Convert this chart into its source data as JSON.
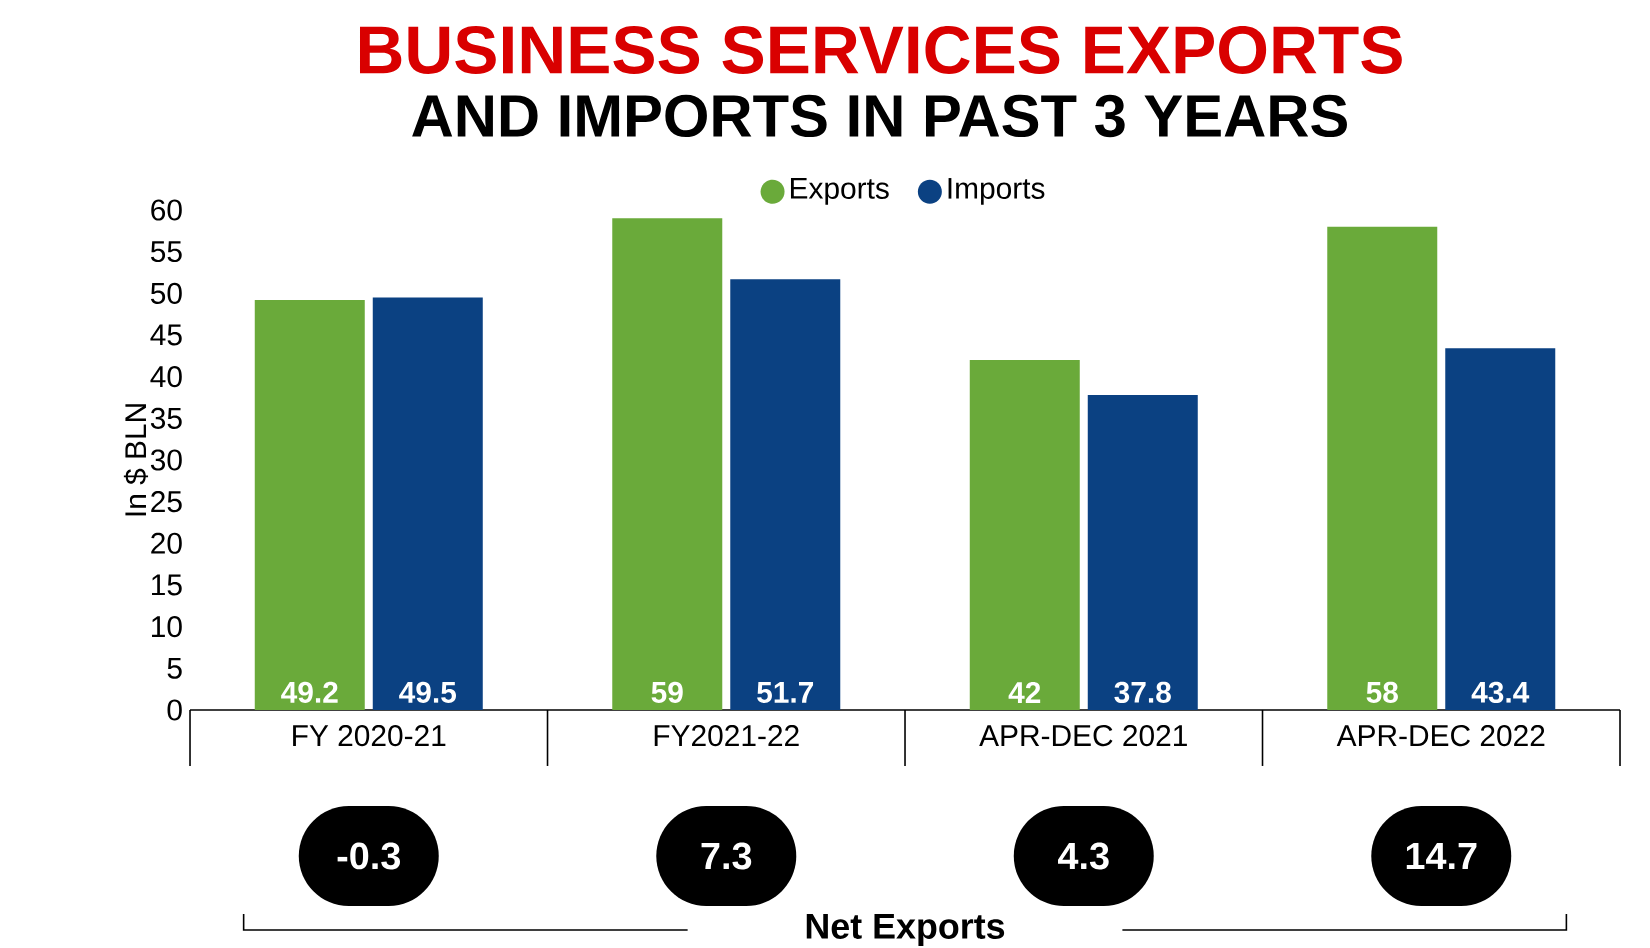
{
  "chart_data": {
    "type": "bar",
    "title": "BUSINESS SERVICES EXPORTS",
    "subtitle": "AND IMPORTS IN PAST 3 YEARS",
    "ylabel": "In $ BLN",
    "categories": [
      "FY 2020-21",
      "FY2021-22",
      "APR-DEC 2021",
      "APR-DEC 2022"
    ],
    "series": [
      {
        "name": "Exports",
        "color": "#6aaa3a",
        "values": [
          49.2,
          59,
          42,
          58
        ]
      },
      {
        "name": "Imports",
        "color": "#0b4182",
        "values": [
          49.5,
          51.7,
          37.8,
          43.4
        ]
      }
    ],
    "ylim": [
      0,
      60
    ],
    "yticks": [
      0,
      5,
      10,
      15,
      20,
      25,
      30,
      35,
      40,
      45,
      50,
      55,
      60
    ],
    "data_labels": true,
    "legend": "top",
    "grid": false,
    "annotations": [
      "-0.3",
      "7.3",
      "4.3",
      "14.7",
      "Net Exports"
    ]
  }
}
